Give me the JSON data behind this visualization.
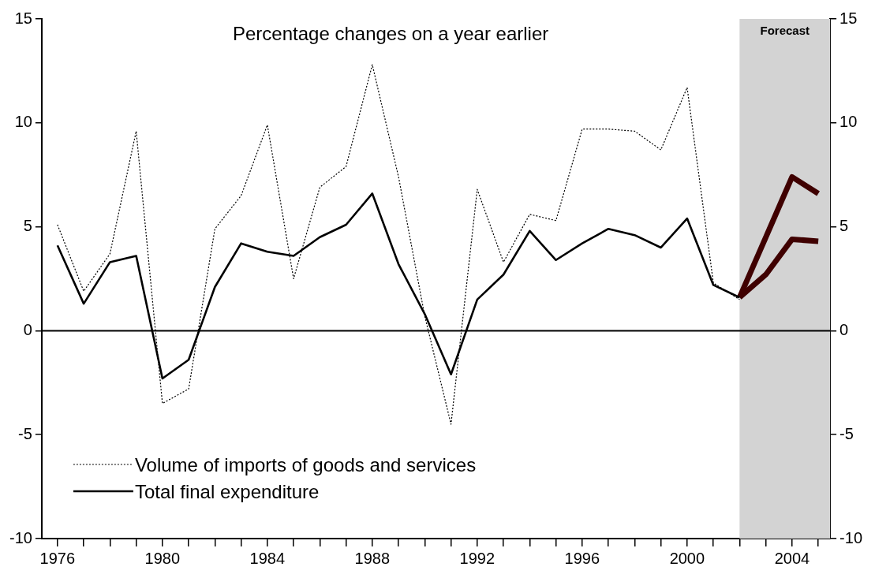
{
  "chart_data": {
    "type": "line",
    "subtitle": "Percentage changes on a year earlier",
    "xlim": [
      1975.4,
      2005.45
    ],
    "xticks": [
      {
        "value": 1976,
        "label": "1976"
      },
      {
        "value": 1977,
        "label": null
      },
      {
        "value": 1978,
        "label": null
      },
      {
        "value": 1979,
        "label": null
      },
      {
        "value": 1980,
        "label": "1980"
      },
      {
        "value": 1981,
        "label": null
      },
      {
        "value": 1982,
        "label": null
      },
      {
        "value": 1983,
        "label": null
      },
      {
        "value": 1984,
        "label": "1984"
      },
      {
        "value": 1985,
        "label": null
      },
      {
        "value": 1986,
        "label": null
      },
      {
        "value": 1987,
        "label": null
      },
      {
        "value": 1988,
        "label": "1988"
      },
      {
        "value": 1989,
        "label": null
      },
      {
        "value": 1990,
        "label": null
      },
      {
        "value": 1991,
        "label": null
      },
      {
        "value": 1992,
        "label": "1992"
      },
      {
        "value": 1993,
        "label": null
      },
      {
        "value": 1994,
        "label": null
      },
      {
        "value": 1995,
        "label": null
      },
      {
        "value": 1996,
        "label": "1996"
      },
      {
        "value": 1997,
        "label": null
      },
      {
        "value": 1998,
        "label": null
      },
      {
        "value": 1999,
        "label": null
      },
      {
        "value": 2000,
        "label": "2000"
      },
      {
        "value": 2001,
        "label": null
      },
      {
        "value": 2002,
        "label": null
      },
      {
        "value": 2003,
        "label": null
      },
      {
        "value": 2004,
        "label": "2004"
      },
      {
        "value": 2005,
        "label": null
      }
    ],
    "ylim": [
      -10,
      15
    ],
    "yticks": [
      -10,
      -5,
      0,
      5,
      10,
      15
    ],
    "y2lim": [
      -10,
      15
    ],
    "y2ticks": [
      -10,
      -5,
      0,
      5,
      10,
      15
    ],
    "grid": false,
    "legend": "bottom left",
    "marker": "none",
    "ref_lines": [
      {
        "axis": "y",
        "value": 0,
        "color": "#000000"
      }
    ],
    "bands": [
      {
        "axis": "x",
        "from": 2002,
        "to": 2005.45,
        "label": "Forecast",
        "color": "#d3d3d3"
      }
    ],
    "series": [
      {
        "name": "Volume of imports of goods and services",
        "color": "#000000",
        "line_style": "dotted",
        "x": [
          1976,
          1977,
          1978,
          1979,
          1980,
          1981,
          1982,
          1983,
          1984,
          1985,
          1986,
          1987,
          1988,
          1989,
          1990,
          1991,
          1992,
          1993,
          1994,
          1995,
          1996,
          1997,
          1998,
          1999,
          2000,
          2001,
          2002
        ],
        "values": [
          5.1,
          1.9,
          3.7,
          9.6,
          -3.5,
          -2.8,
          4.9,
          6.5,
          9.9,
          2.5,
          6.9,
          7.9,
          12.8,
          7.4,
          0.7,
          -4.5,
          6.8,
          3.3,
          5.6,
          5.3,
          9.7,
          9.7,
          9.6,
          8.7,
          11.7,
          2.3,
          1.5
        ]
      },
      {
        "name": "Total final expenditure",
        "color": "#000000",
        "line_style": "solid",
        "x": [
          1976,
          1977,
          1978,
          1979,
          1980,
          1981,
          1982,
          1983,
          1984,
          1985,
          1986,
          1987,
          1988,
          1989,
          1990,
          1991,
          1992,
          1993,
          1994,
          1995,
          1996,
          1997,
          1998,
          1999,
          2000,
          2001,
          2002
        ],
        "values": [
          4.1,
          1.3,
          3.3,
          3.6,
          -2.3,
          -1.4,
          2.1,
          4.2,
          3.8,
          3.6,
          4.5,
          5.1,
          6.6,
          3.2,
          0.8,
          -2.1,
          1.5,
          2.7,
          4.8,
          3.4,
          4.2,
          4.9,
          4.6,
          4.0,
          5.4,
          2.2,
          1.6
        ]
      },
      {
        "color": "#3f0000",
        "line_style": "solid",
        "x": [
          2002,
          2003,
          2004,
          2005
        ],
        "values": [
          1.6,
          4.5,
          7.4,
          6.6
        ]
      },
      {
        "color": "#3f0000",
        "line_style": "solid",
        "x": [
          2002,
          2003,
          2004,
          2005
        ],
        "values": [
          1.6,
          2.7,
          4.4,
          4.3
        ]
      }
    ]
  }
}
